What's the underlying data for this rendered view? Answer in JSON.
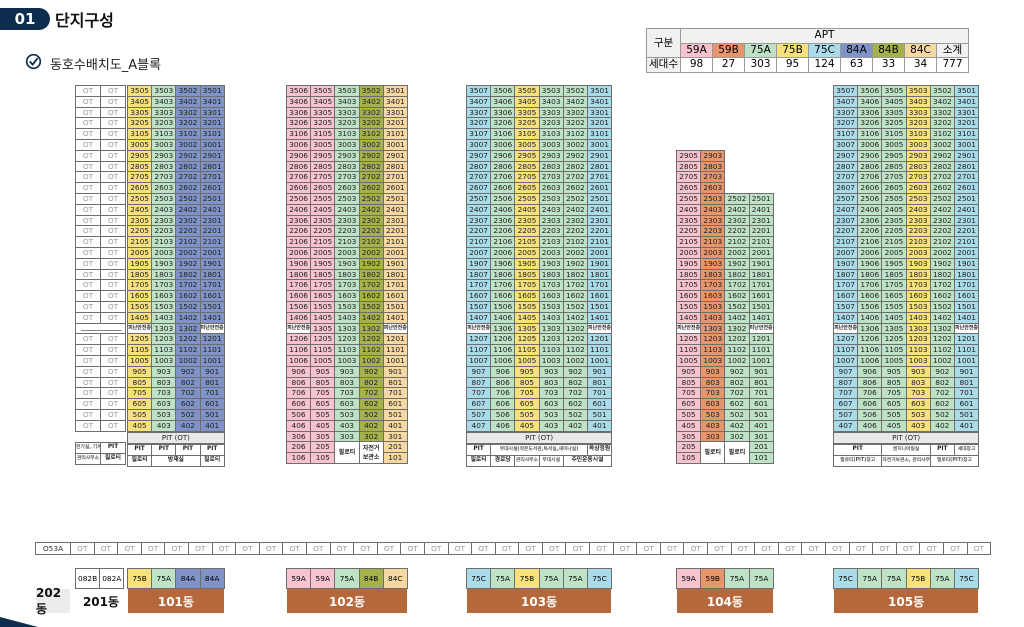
{
  "header": {
    "badge": "01",
    "title": "단지구성",
    "subtitle": "동호수배치도_A블록"
  },
  "icons": {
    "check": "check-circle-icon"
  },
  "colors": {
    "59A": "#f6c3ce",
    "59B": "#e8956b",
    "75A": "#bde2c6",
    "75B": "#f7e17d",
    "75C": "#a9dbe9",
    "84A": "#7f93c8",
    "84B": "#a5b24c",
    "84C": "#f6d8a3",
    "ot": "#ffffff",
    "bar": "#b5683b"
  },
  "summary": {
    "group_label": "구분",
    "apt_label": "APT",
    "count_label": "세대수",
    "types": [
      "59A",
      "59B",
      "75A",
      "75B",
      "75C",
      "84A",
      "84B",
      "84C",
      "소계"
    ],
    "counts": [
      "98",
      "27",
      "303",
      "95",
      "124",
      "63",
      "33",
      "34",
      "777"
    ]
  },
  "floor_markers": {
    "fan_room": "피난안전층"
  },
  "buildings": {
    "b101": {
      "name": "101동",
      "type_row": [
        "75B",
        "75A",
        "84A",
        "84A"
      ],
      "cols": [
        {
          "type": "75B",
          "line": "05"
        },
        {
          "type": "75A",
          "line": "03"
        },
        {
          "type": "84A",
          "line": "02"
        },
        {
          "type": "84A",
          "line": "01"
        }
      ],
      "top_floor": 35,
      "min_floor": 4,
      "refuge_floor": 13,
      "pit": "PIT (OT)",
      "ground1": [
        "PIT",
        "PIT",
        "PIT",
        "PIT"
      ],
      "ground2": [
        "필로티",
        "방재실",
        "필로티"
      ]
    },
    "b201": {
      "name": "201동",
      "type_row": [
        "082B",
        "082A"
      ],
      "ot": "OT",
      "ground1": [
        "PIT",
        "PIT"
      ],
      "ground2": [
        "필로티"
      ],
      "side1": "전기실, 기계실 등",
      "side2": "관리사무소"
    },
    "b202": {
      "name": "202동",
      "code": "O53A"
    },
    "b102": {
      "name": "102동",
      "type_row": [
        "59A",
        "59A",
        "75A",
        "84B",
        "84C"
      ],
      "cols": [
        {
          "type": "59A",
          "line": "06"
        },
        {
          "type": "59A",
          "line": "05"
        },
        {
          "type": "75A",
          "line": "03"
        },
        {
          "type": "84B",
          "line": "02"
        },
        {
          "type": "84C",
          "line": "01"
        }
      ],
      "top_floor": 35,
      "min_floor": 1,
      "refuge_floor": 13,
      "ground_labels": [
        "필로티",
        "자전거 보관소"
      ]
    },
    "b103": {
      "name": "103동",
      "type_row": [
        "75C",
        "75A",
        "75B",
        "75A",
        "75A",
        "75C"
      ],
      "cols": [
        {
          "type": "75C",
          "line": "07"
        },
        {
          "type": "75A",
          "line": "06"
        },
        {
          "type": "75B",
          "line": "05"
        },
        {
          "type": "75A",
          "line": "03"
        },
        {
          "type": "75A",
          "line": "02"
        },
        {
          "type": "75C",
          "line": "01"
        }
      ],
      "top_floor": 35,
      "min_floor": 4,
      "refuge_floor": 13,
      "pit": "PIT (OT)",
      "ground1": [
        "PIT",
        "부대시설(작은도서관,독서실,세미나실)",
        "옥상정원"
      ],
      "ground2": [
        "필로티",
        "경로당",
        "관리사무소",
        "부대시설",
        "주민운동시설"
      ]
    },
    "b104": {
      "name": "104동",
      "type_row": [
        "59A",
        "59B",
        "75A",
        "75A"
      ],
      "cols": [
        {
          "type": "59A",
          "line": "05"
        },
        {
          "type": "59B",
          "line": "03"
        },
        {
          "type": "75A",
          "line": "02"
        },
        {
          "type": "75A",
          "line": "01"
        }
      ],
      "top_floor": 29,
      "top_floor_right": 25,
      "min_floor": 1,
      "refuge_floor": 13,
      "ground_labels": [
        "필로티",
        "필로티"
      ]
    },
    "b105": {
      "name": "105동",
      "type_row": [
        "75C",
        "75A",
        "75A",
        "75B",
        "75A",
        "75C"
      ],
      "cols": [
        {
          "type": "75C",
          "line": "07"
        },
        {
          "type": "75A",
          "line": "06"
        },
        {
          "type": "75A",
          "line": "05"
        },
        {
          "type": "75B",
          "line": "03"
        },
        {
          "type": "75A",
          "line": "02"
        },
        {
          "type": "75C",
          "line": "01"
        }
      ],
      "top_floor": 35,
      "min_floor": 4,
      "refuge_floor": 13,
      "pit": "PIT (OT)",
      "ground1": [
        "PIT",
        "엔지니어링실",
        "PIT",
        "세대창고"
      ],
      "ground2": [
        "필로티(PIT)창고",
        "자전거보관소, 관리사무소",
        "필로티(PIT)창고"
      ]
    },
    "ot": "OT"
  }
}
